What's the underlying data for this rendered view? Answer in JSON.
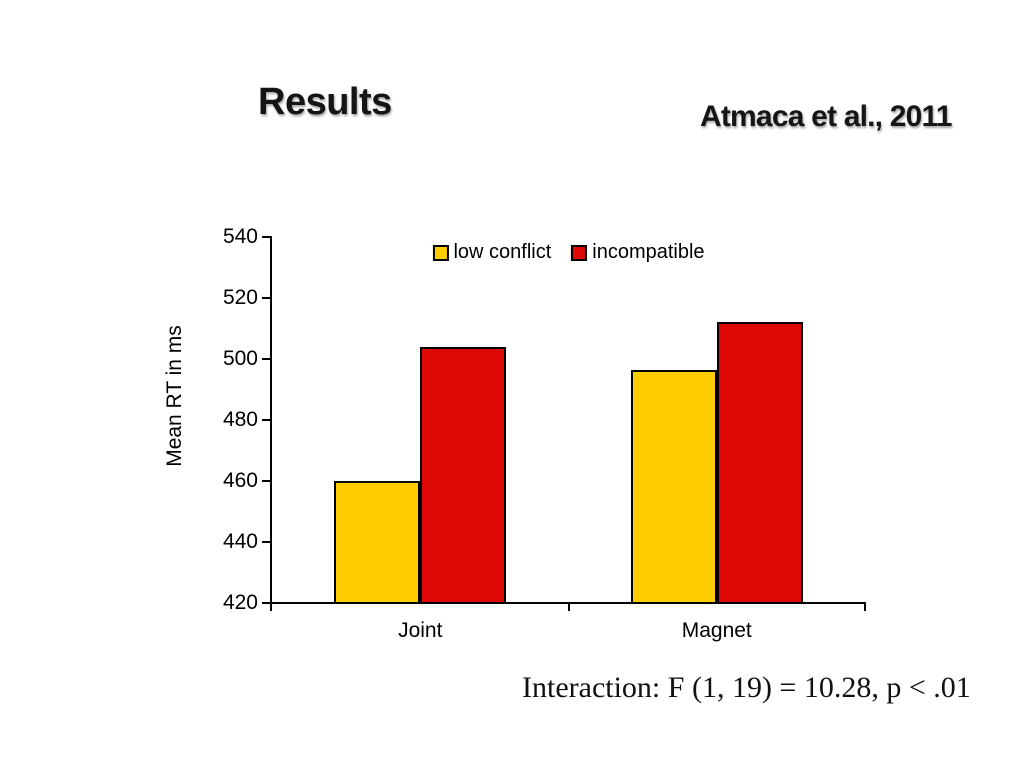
{
  "slide": {
    "title": "Results",
    "attribution": "Atmaca et al., 2011",
    "stats_note": "Interaction: F (1, 19) = 10.28, p < .01"
  },
  "chart_data": {
    "type": "bar",
    "title": "",
    "xlabel": "",
    "ylabel": "Mean RT in ms",
    "categories": [
      "Joint",
      "Magnet"
    ],
    "series": [
      {
        "name": "low conflict",
        "color": "#FFCC00",
        "values": [
          460,
          496.5
        ]
      },
      {
        "name": "incompatible",
        "color": "#DD0806",
        "values": [
          504,
          512
        ]
      }
    ],
    "ylim": [
      420,
      540
    ],
    "yticks": [
      540,
      520,
      500,
      480,
      460,
      440,
      420
    ],
    "grid": false,
    "legend_position": "top-center",
    "axis_color": "#000000"
  }
}
